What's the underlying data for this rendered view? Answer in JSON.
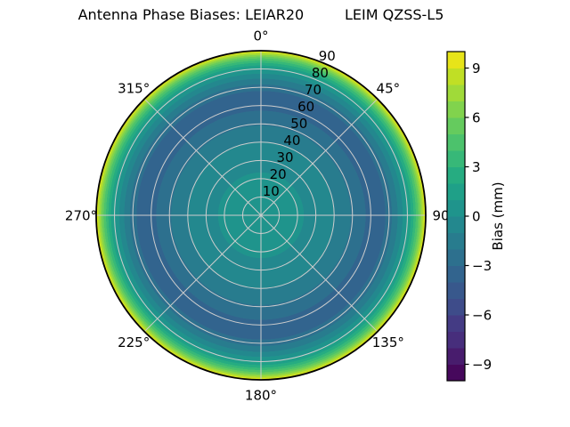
{
  "title": "Antenna Phase Biases: LEIAR20         LEIM QZSS-L5",
  "colors": {
    "background": "#ffffff",
    "grid": "#cdcdcd",
    "outline": "#000000",
    "text": "#000000"
  },
  "chart_data": {
    "type": "heatmap",
    "projection": "polar",
    "title": "Antenna Phase Biases: LEIAR20         LEIM QZSS-L5",
    "legend_position": "right-colorbar",
    "grid": true,
    "azimuth_zero": "top",
    "azimuth_direction": "clockwise",
    "azimuth_labels": [
      {
        "deg": 0,
        "label": "0°"
      },
      {
        "deg": 45,
        "label": "45°"
      },
      {
        "deg": 90,
        "label": "90"
      },
      {
        "deg": 135,
        "label": "135°"
      },
      {
        "deg": 180,
        "label": "180°"
      },
      {
        "deg": 225,
        "label": "225°"
      },
      {
        "deg": 270,
        "label": "270°"
      },
      {
        "deg": 315,
        "label": "315°"
      }
    ],
    "zenith_ticks": [
      {
        "value": 10,
        "label": "10"
      },
      {
        "value": 20,
        "label": "20"
      },
      {
        "value": 30,
        "label": "30"
      },
      {
        "value": 40,
        "label": "40"
      },
      {
        "value": 50,
        "label": "50"
      },
      {
        "value": 60,
        "label": "60"
      },
      {
        "value": 70,
        "label": "70"
      },
      {
        "value": 80,
        "label": "80"
      },
      {
        "value": 90,
        "label": "90"
      }
    ],
    "zenith_max": 90,
    "radial_label_azimuth_deg": 22.5,
    "grid_circle_values": [
      10,
      20,
      30,
      40,
      50,
      60,
      70,
      80
    ],
    "colorbar": {
      "label": "Bias (mm)",
      "vmin": -10,
      "vmax": 10,
      "n_bands": 20,
      "tick_values": [
        9,
        6,
        3,
        0,
        -3,
        -6,
        -9
      ],
      "tick_labels": [
        "9",
        "6",
        "3",
        "0",
        "−3",
        "−6",
        "−9"
      ],
      "band_colors_bottom_to_top": [
        "#46085c",
        "#481c6d",
        "#472e7c",
        "#443b84",
        "#3e4c8a",
        "#38588c",
        "#32648e",
        "#2d708e",
        "#287c8e",
        "#23888e",
        "#1f948c",
        "#1fa088",
        "#26ac81",
        "#37b878",
        "#4cc26c",
        "#65cb5e",
        "#81d34d",
        "#a0da39",
        "#c0df25",
        "#e7e419"
      ]
    },
    "radial_profile": {
      "azimuthally_symmetric": true,
      "zenith_deg": [
        0,
        10,
        20,
        30,
        40,
        50,
        60,
        70,
        75,
        80,
        85,
        90
      ],
      "bias_mm": [
        0.8,
        0.6,
        0.2,
        -0.5,
        -1.0,
        -2.2,
        -3.4,
        -2.9,
        -1.0,
        1.0,
        4.5,
        10.0
      ]
    },
    "render_bands_fraction_of_radius": [
      {
        "band": "0..1",
        "color": "#1f948c",
        "from": 0.0,
        "to": 0.26
      },
      {
        "band": "-1..0",
        "color": "#23888e",
        "from": 0.26,
        "to": 0.445
      },
      {
        "band": "-2..-1",
        "color": "#287c8e",
        "from": 0.445,
        "to": 0.545
      },
      {
        "band": "-3..-2",
        "color": "#2d708e",
        "from": 0.545,
        "to": 0.635
      },
      {
        "band": "-4..-3",
        "color": "#32648e",
        "from": 0.635,
        "to": 0.755
      },
      {
        "band": "-3..-2",
        "color": "#2d708e",
        "from": 0.755,
        "to": 0.795
      },
      {
        "band": "-2..-1",
        "color": "#287c8e",
        "from": 0.795,
        "to": 0.83
      },
      {
        "band": "-1..0",
        "color": "#23888e",
        "from": 0.83,
        "to": 0.86
      },
      {
        "band": "0..1",
        "color": "#1f948c",
        "from": 0.86,
        "to": 0.89
      },
      {
        "band": "1..2",
        "color": "#1fa088",
        "from": 0.89,
        "to": 0.91
      },
      {
        "band": "2..3",
        "color": "#26ac81",
        "from": 0.91,
        "to": 0.926
      },
      {
        "band": "3..4",
        "color": "#37b878",
        "from": 0.926,
        "to": 0.94
      },
      {
        "band": "4..5",
        "color": "#4cc26c",
        "from": 0.94,
        "to": 0.953
      },
      {
        "band": "5..6",
        "color": "#65cb5e",
        "from": 0.953,
        "to": 0.964
      },
      {
        "band": "6..7",
        "color": "#81d34d",
        "from": 0.964,
        "to": 0.974
      },
      {
        "band": "7..8",
        "color": "#a0da39",
        "from": 0.974,
        "to": 0.983
      },
      {
        "band": "8..9",
        "color": "#c0df25",
        "from": 0.983,
        "to": 0.992
      },
      {
        "band": "9..10",
        "color": "#e7e419",
        "from": 0.992,
        "to": 1.0
      }
    ]
  }
}
